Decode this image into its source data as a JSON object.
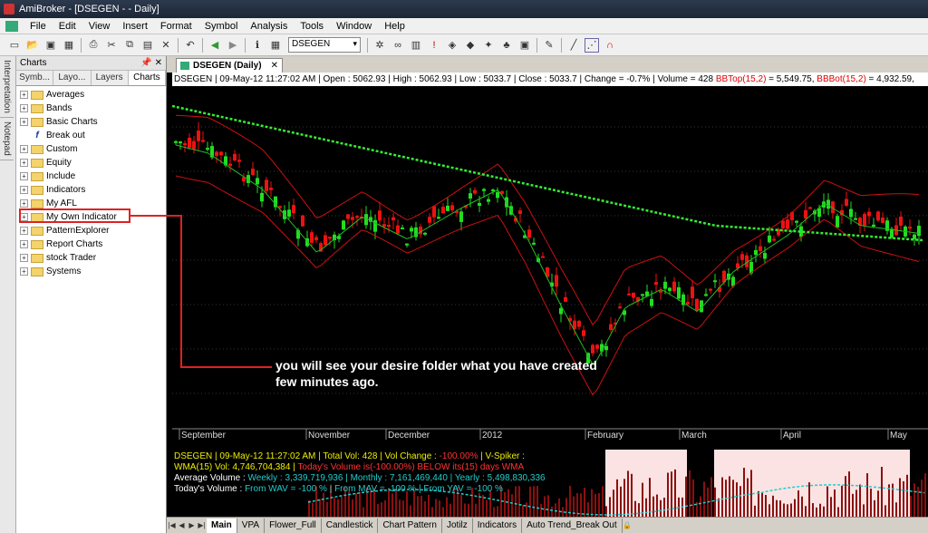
{
  "window": {
    "title": "AmiBroker - [DSEGEN - - Daily]"
  },
  "menu": [
    "File",
    "Edit",
    "View",
    "Insert",
    "Format",
    "Symbol",
    "Analysis",
    "Tools",
    "Window",
    "Help"
  ],
  "toolbar": {
    "symbol": "DSEGEN"
  },
  "sidetabs": [
    "Interpretation",
    "Notepad"
  ],
  "panel": {
    "title": "Charts",
    "pin": "📌 ✕",
    "tabs": [
      "Symb...",
      "Layo...",
      "Layers",
      "Charts"
    ],
    "tree": [
      {
        "label": "Averages",
        "kind": "folder"
      },
      {
        "label": "Bands",
        "kind": "folder"
      },
      {
        "label": "Basic Charts",
        "kind": "folder"
      },
      {
        "label": "Break out",
        "kind": "formula"
      },
      {
        "label": "Custom",
        "kind": "folder"
      },
      {
        "label": "Equity",
        "kind": "folder"
      },
      {
        "label": "Include",
        "kind": "folder"
      },
      {
        "label": "Indicators",
        "kind": "folder"
      },
      {
        "label": "My AFL",
        "kind": "folder"
      },
      {
        "label": "My Own Indicator",
        "kind": "folder"
      },
      {
        "label": "PatternExplorer",
        "kind": "folder"
      },
      {
        "label": "Report Charts",
        "kind": "folder"
      },
      {
        "label": "stock Trader",
        "kind": "folder"
      },
      {
        "label": "Systems",
        "kind": "folder"
      }
    ]
  },
  "doc": {
    "tab": "DSEGEN (Daily)",
    "info": "DSEGEN | 09-May-12 11:27:02 AM | Open : 5062.93 | High : 5062.93 | Low : 5033.7 | Close : 5033.7 | Change = -0.7% | Volume = 428",
    "bbtop": "BBTop(15,2)",
    "bbtop_val": " = 5,549.75,",
    "bbbot": "BBBot(15,2)",
    "bbbot_val": " = 4,932.59,"
  },
  "callout": {
    "line1": "you will see your desire folder what you have created",
    "line2": "few minutes ago."
  },
  "xaxis": [
    "September",
    "November",
    "December",
    "2012",
    "February",
    "March",
    "April",
    "May"
  ],
  "indicator": {
    "line1a": "DSEGEN | 09-May-12 11:27:02 AM | Total Vol:  428 | Vol Change : ",
    "line1b": "-100.00%",
    "line1c": " | V-Spiker :",
    "line2a": "WMA(15) Vol: 4,746,704,384 | ",
    "line2b": "Today's Volume is(-100.00%) BELOW its(15) days WMA",
    "line3a": "Average Volume : ",
    "line3b": "Weekly : 3,339,719,936 | Monthly : 7,161,469,440 | Yearly : 5,498,830,336",
    "line4a": "Today's Volume : ",
    "line4b": "From WAV = -100 %  |  From MAV = -100 %  |  From YAV = -100 %"
  },
  "sheets": [
    "Main",
    "VPA",
    "Flower_Full",
    "Candlestick",
    "Chart Pattern",
    "Jotilz",
    "Indicators",
    "Auto Trend_Break Out"
  ],
  "chart_data": {
    "type": "candlestick",
    "title": "DSEGEN (Daily)",
    "months": [
      "September",
      "November",
      "December",
      "2012",
      "February",
      "March",
      "April",
      "May"
    ],
    "series": [
      {
        "name": "BBTop(15,2)",
        "last": 5549.75
      },
      {
        "name": "BBBot(15,2)",
        "last": 4932.59
      }
    ],
    "last_bar": {
      "open": 5062.93,
      "high": 5062.93,
      "low": 5033.7,
      "close": 5033.7,
      "volume": 428
    }
  },
  "colors": {
    "up": "#22dd22",
    "down": "#ee1111",
    "band": "#cc1111",
    "ma": "#33ee33"
  }
}
